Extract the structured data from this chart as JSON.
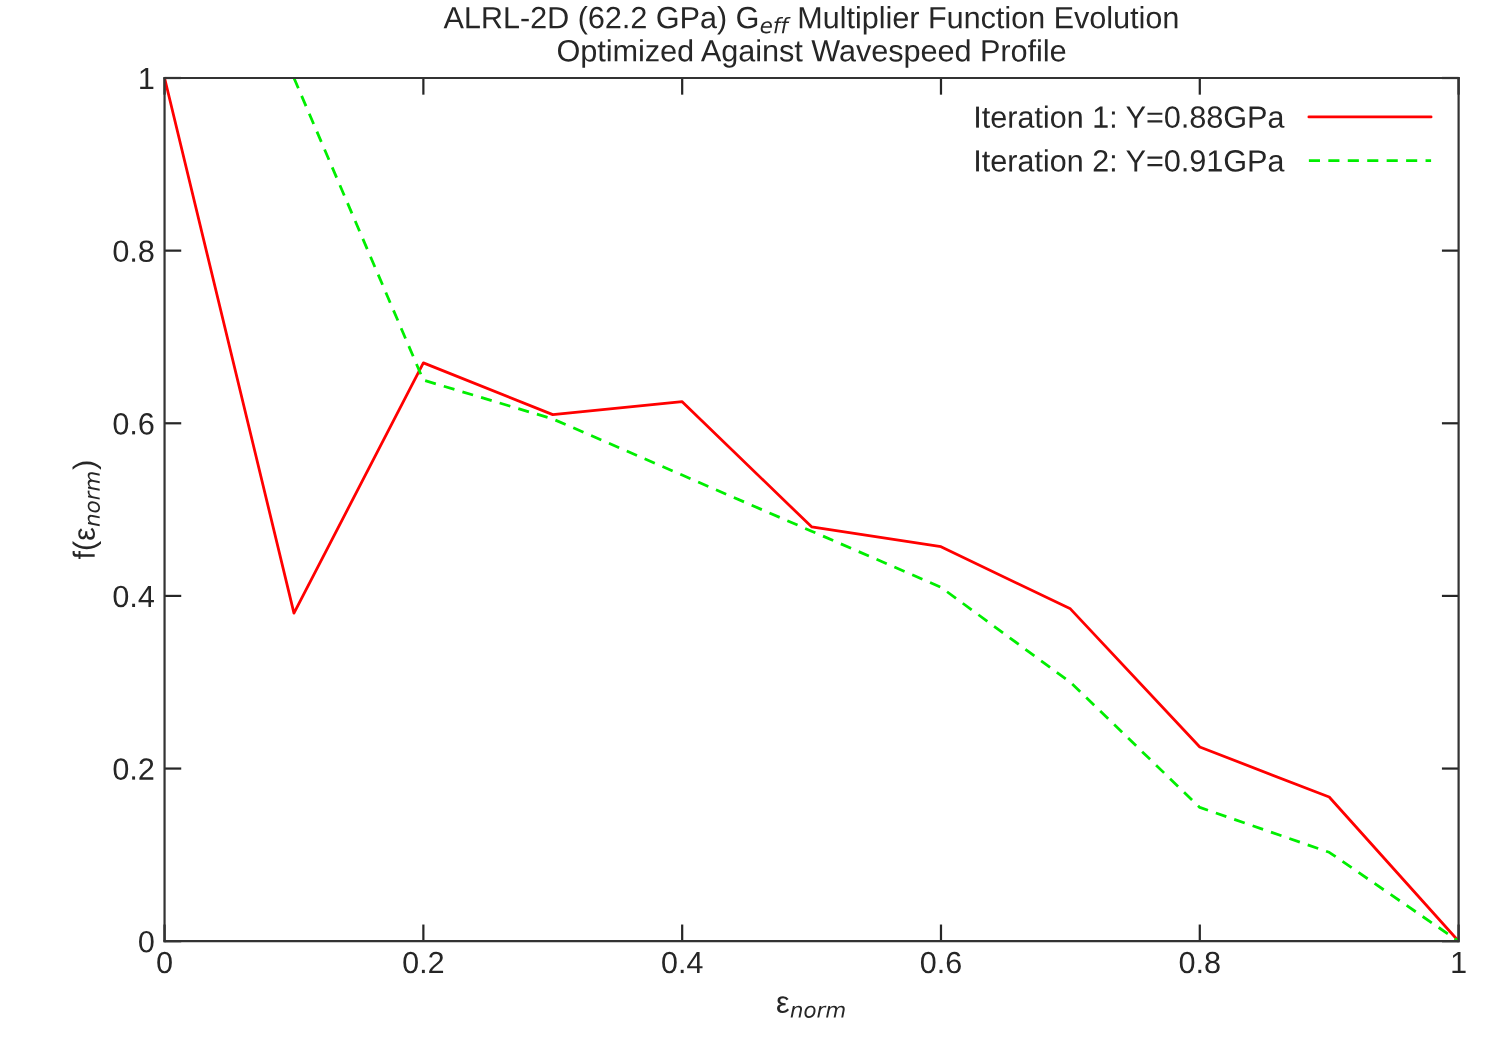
{
  "chart_data": {
    "type": "line",
    "title": "ALRL-2D (62.2 GPa) G$_{eff}$ Multiplier Function Evolution\nOptimized Against Wavespeed Profile",
    "xlabel": "ε$_{norm}$",
    "ylabel": "f(ε$_{norm}$)",
    "series": [
      {
        "name": "Iteration 1: Y=0.88GPa",
        "color": "#ff0000",
        "line_style": "solid",
        "x": [
          0,
          0.1,
          0.2,
          0.3,
          0.4,
          0.5,
          0.6,
          0.7,
          0.8,
          0.9,
          1
        ],
        "values": [
          1,
          0.38,
          0.67,
          0.61,
          0.625,
          0.48,
          0.457,
          0.385,
          0.225,
          0.167,
          0
        ]
      },
      {
        "name": "Iteration 2: Y=0.91GPa",
        "color": "#00ee00",
        "line_style": "dashed",
        "x": [
          0.1,
          0.2,
          0.3,
          0.4,
          0.5,
          0.6,
          0.7,
          0.8,
          0.9,
          1
        ],
        "values": [
          1,
          0.65,
          0.605,
          0.54,
          0.475,
          0.41,
          0.3,
          0.155,
          0.103,
          0
        ]
      }
    ],
    "xlim": [
      0,
      1
    ],
    "ylim": [
      0,
      1
    ],
    "xticks": [
      0,
      0.2,
      0.4,
      0.6,
      0.8,
      1
    ],
    "yticks": [
      0,
      0.2,
      0.4,
      0.6,
      0.8,
      1
    ],
    "grid": false,
    "legend": "top right"
  }
}
